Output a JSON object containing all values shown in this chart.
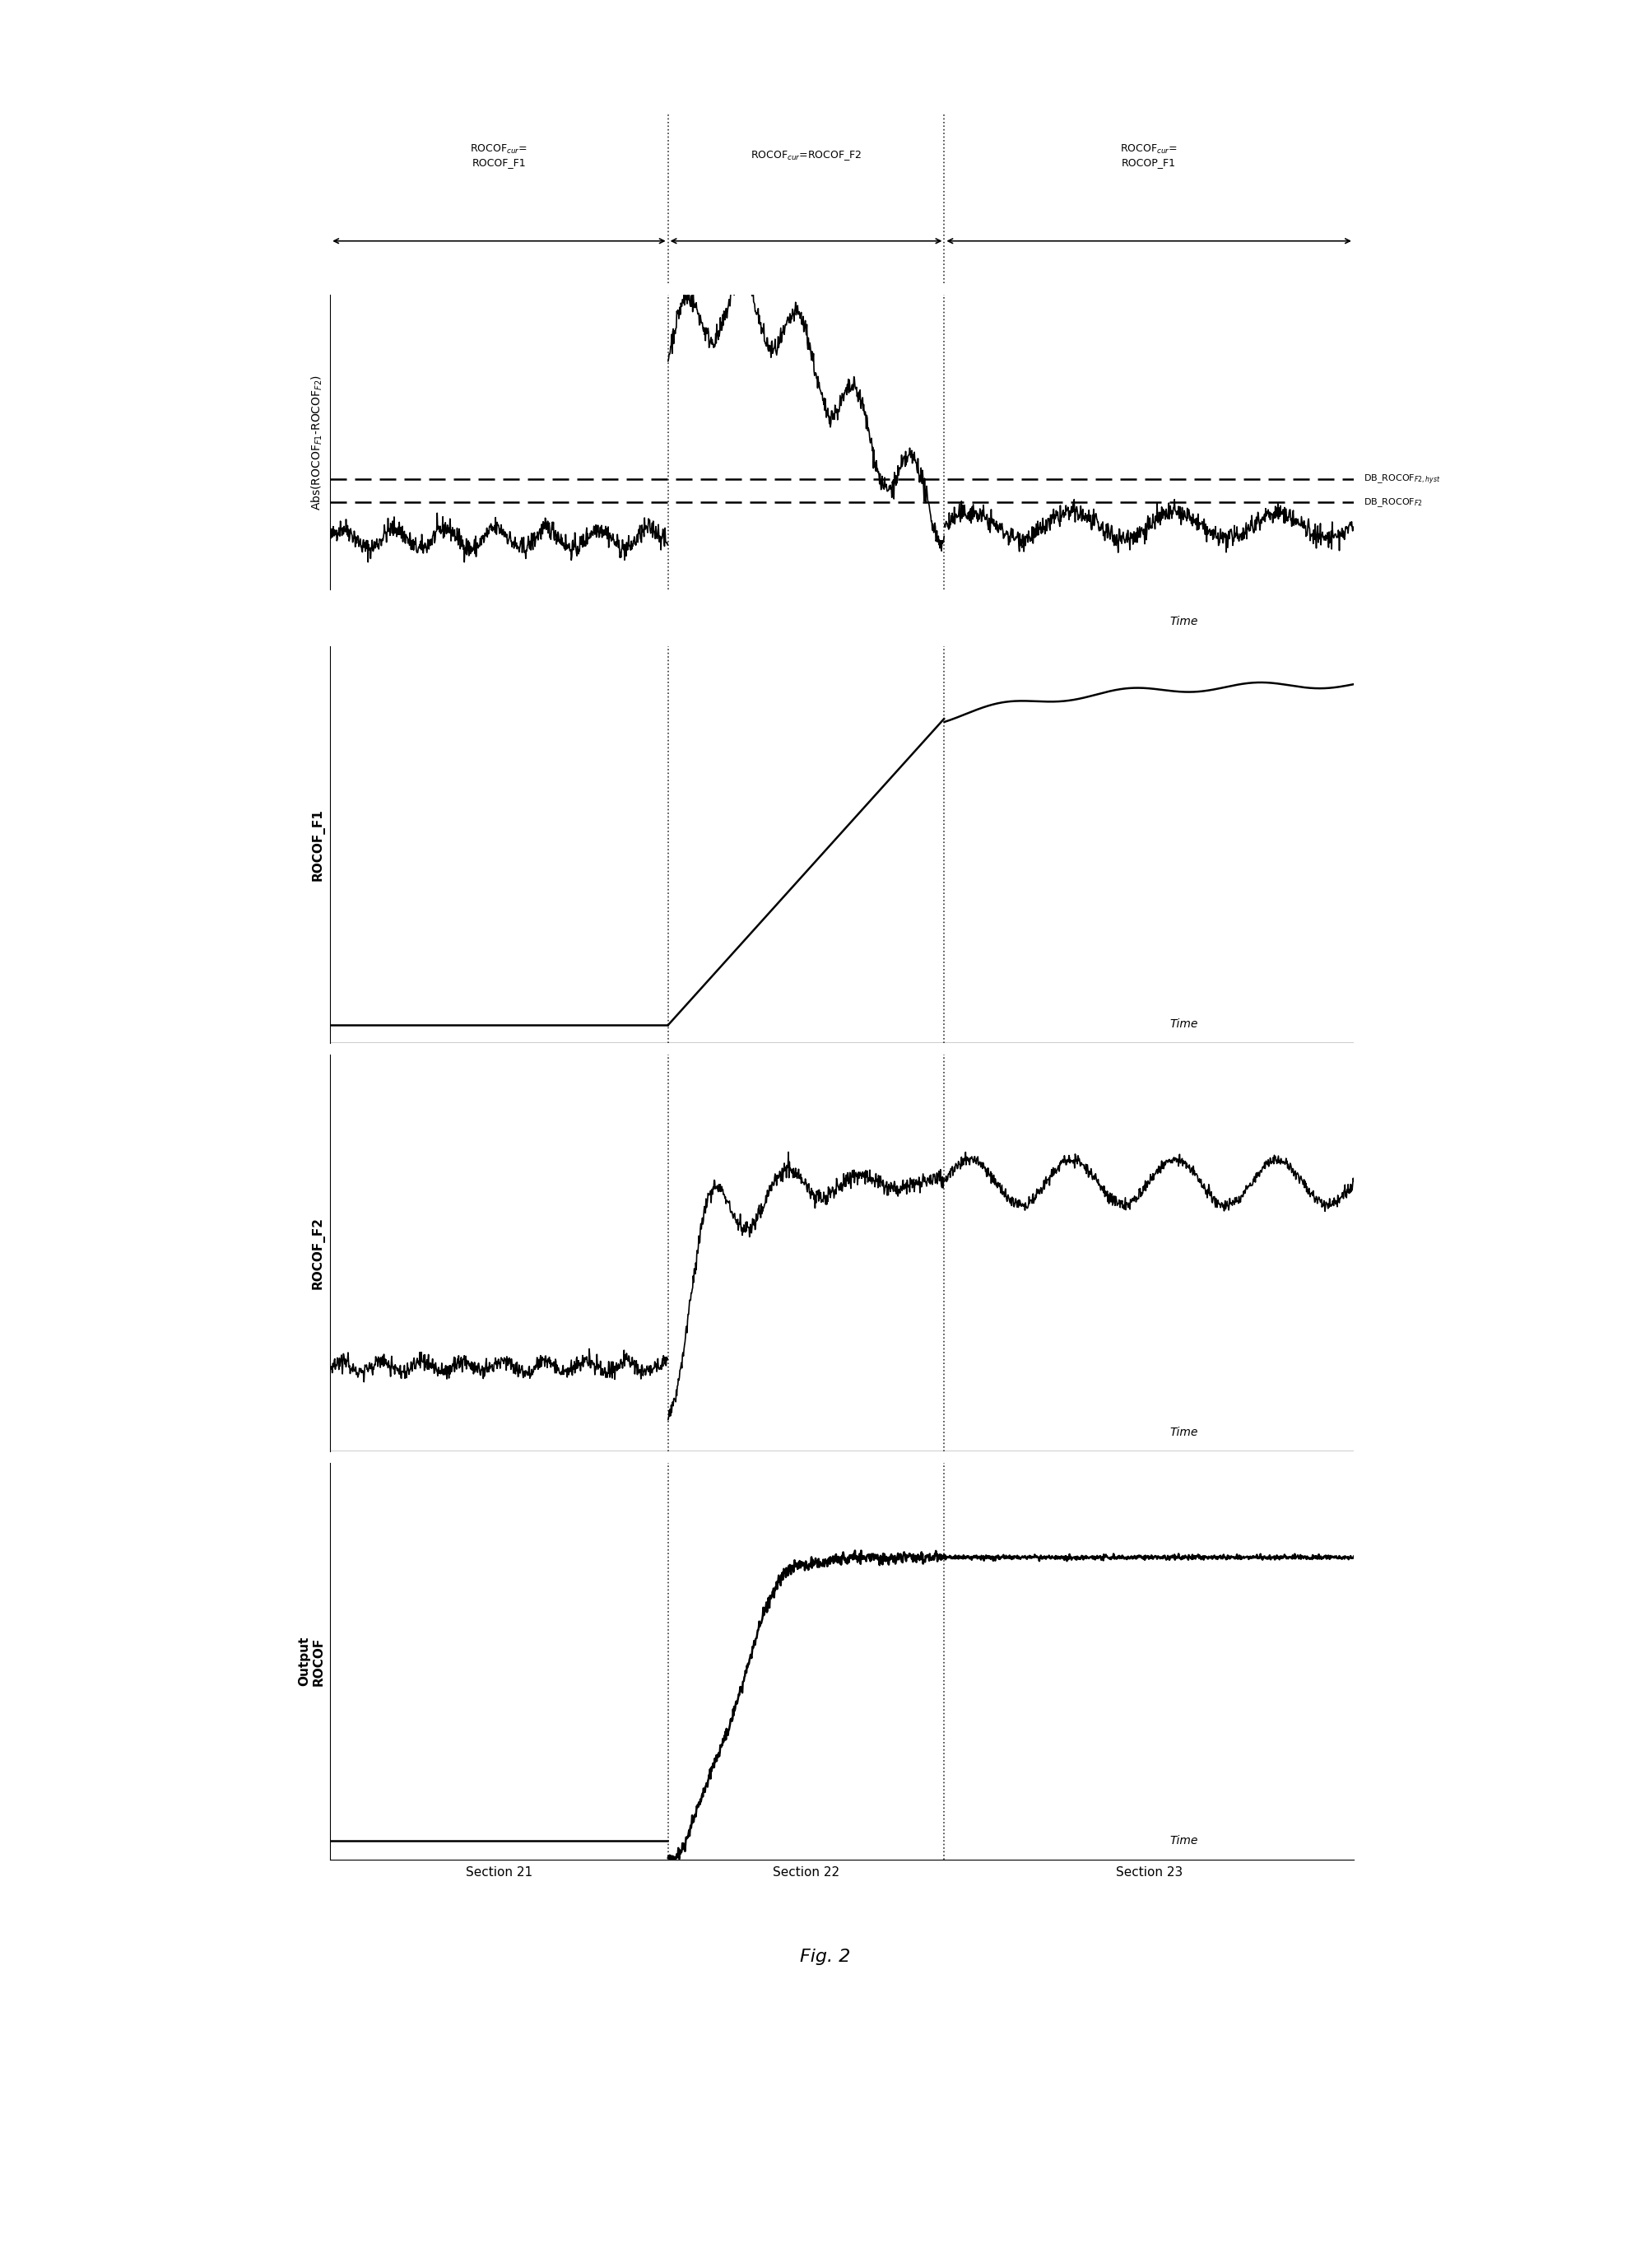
{
  "fig_width": 20.06,
  "fig_height": 27.55,
  "background_color": "#ffffff",
  "s1": 0.33,
  "s2": 0.6,
  "section_labels": [
    "Section 21",
    "Section 22",
    "Section 23"
  ],
  "title": "Fig. 2",
  "header_text_1": "ROCOF$_{cur}$=\nROCOF_F1",
  "header_text_2": "ROCOF$_{cur}$=ROCOF_F2",
  "header_text_3": "ROCOF$_{cur}$=\nROCOP_F1",
  "db_hyst_label": "DB_ROCOF$_{F2,hyst}$",
  "db_f2_label": "DB_ROCOF$_{F2}$",
  "ylabel1": "Abs(ROCOF$_{F1}$-ROCOF$_{F2}$)",
  "ylabel2": "ROCOF_F1",
  "ylabel3": "ROCOF_F2",
  "ylabel4": "Output\nROCOF",
  "time_label": "Time"
}
